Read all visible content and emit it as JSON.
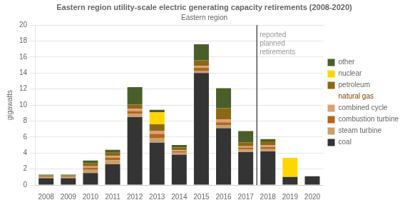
{
  "chart_data": {
    "type": "bar",
    "title": "Eastern region utility-scale electric generating capacity retirements (2008-2020)",
    "subtitle": "Eastern region",
    "ylabel": "gigawatts",
    "categories": [
      "2008",
      "2009",
      "2010",
      "2011",
      "2012",
      "2013",
      "2014",
      "2015",
      "2016",
      "2017",
      "2018",
      "2019",
      "2020"
    ],
    "series": [
      {
        "name": "coal",
        "color": "#343434",
        "values": [
          0.85,
          0.85,
          1.5,
          2.6,
          8.5,
          5.3,
          3.8,
          14.0,
          7.1,
          4.1,
          4.2,
          1.0,
          1.1
        ]
      },
      {
        "name": "steam turbine",
        "color": "#c8a06e",
        "values": [
          0.1,
          0.1,
          0.4,
          0.5,
          0.4,
          0.6,
          0.25,
          0.3,
          0.4,
          0.35,
          0.3,
          0.0,
          0.0
        ]
      },
      {
        "name": "combustion turbine",
        "color": "#b5651d",
        "values": [
          0.1,
          0.1,
          0.25,
          0.35,
          0.35,
          0.5,
          0.2,
          0.35,
          0.35,
          0.25,
          0.25,
          0.0,
          0.0
        ]
      },
      {
        "name": "combined cycle",
        "color": "#dba07a",
        "values": [
          0.05,
          0.05,
          0.2,
          0.2,
          0.3,
          0.4,
          0.1,
          0.25,
          0.35,
          0.15,
          0.2,
          0.0,
          0.0
        ]
      },
      {
        "name": "petroleum",
        "color": "#8b6914",
        "values": [
          0.1,
          0.1,
          0.4,
          0.4,
          0.5,
          0.8,
          0.35,
          0.7,
          1.4,
          0.5,
          0.5,
          0.0,
          0.0
        ]
      },
      {
        "name": "nuclear",
        "color": "#ffd700",
        "values": [
          0.0,
          0.0,
          0.0,
          0.0,
          0.0,
          1.5,
          0.0,
          0.0,
          0.0,
          0.0,
          0.0,
          2.4,
          0.0
        ]
      },
      {
        "name": "other",
        "color": "#4a5e2a",
        "values": [
          0.1,
          0.1,
          0.3,
          0.35,
          2.2,
          0.3,
          0.3,
          2.0,
          2.5,
          1.4,
          0.3,
          0.0,
          0.0
        ]
      }
    ],
    "stacked": true,
    "ylim": [
      0,
      20
    ],
    "yticks": [
      0,
      2,
      4,
      6,
      8,
      10,
      12,
      14,
      16,
      18,
      20
    ],
    "grid": true,
    "legend": "right",
    "annotations": [
      {
        "text": "reported\nplanned\nretirements",
        "x": "2018",
        "y": 19.2,
        "color": "#999999"
      },
      {
        "text": "natural gas",
        "color": "#7b3f00",
        "before": "combined cycle"
      }
    ]
  }
}
